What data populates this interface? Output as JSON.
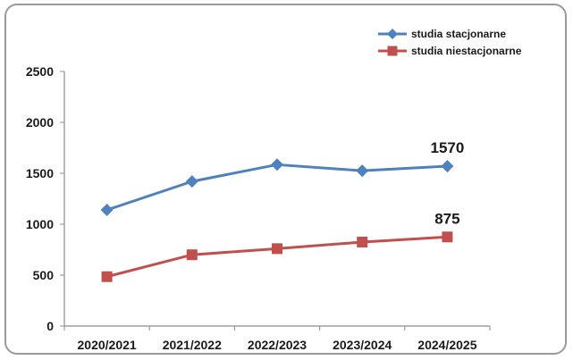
{
  "chart_data": {
    "type": "line",
    "categories": [
      "2020/2021",
      "2021/2022",
      "2022/2023",
      "2023/2024",
      "2024/2025"
    ],
    "series": [
      {
        "name": "studia stacjonarne",
        "values": [
          1140,
          1420,
          1585,
          1525,
          1570
        ],
        "color": "#4f81bd",
        "marker": "diamond",
        "labels": [
          "",
          "",
          "",
          "",
          "1570"
        ]
      },
      {
        "name": "studia niestacjonarne",
        "values": [
          485,
          700,
          760,
          825,
          875
        ],
        "color": "#c0504d",
        "marker": "square",
        "labels": [
          "",
          "",
          "",
          "",
          "875"
        ]
      }
    ],
    "ylim": [
      0,
      2500
    ],
    "yticks": [
      "0",
      "500",
      "1000",
      "1500",
      "2000",
      "2500"
    ],
    "grid": false,
    "legend_position": "top-right",
    "title": "",
    "xlabel": "",
    "ylabel": ""
  }
}
